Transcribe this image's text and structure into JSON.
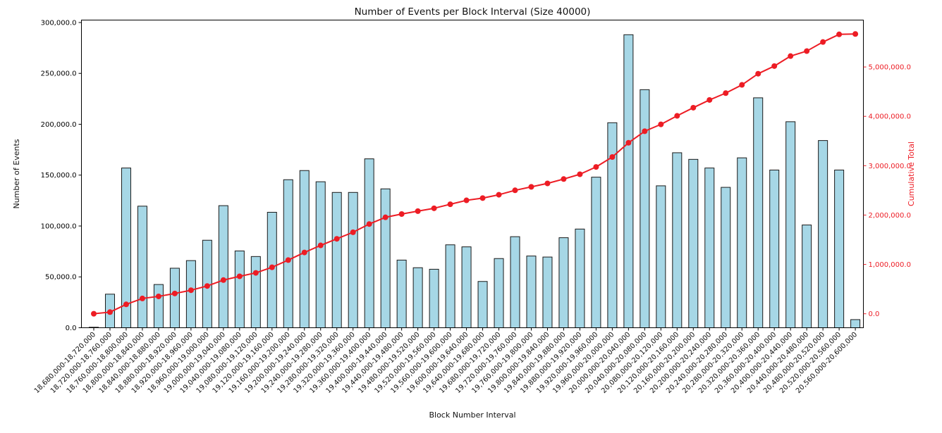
{
  "chart_data": {
    "type": "bar",
    "combo": "bar+line",
    "title": "Number of Events per Block Interval (Size 40000)",
    "xlabel": "Block Number Interval",
    "ylabel_left": "Number of Events",
    "ylabel_right": "Cumulative Total",
    "grid": false,
    "legend": false,
    "colors": {
      "bar_fill": "#A6D7E6",
      "bar_edge": "#1a1a1a",
      "line": "#ED1C24",
      "axis": "#000000",
      "background": "#FFFFFF"
    },
    "categories": [
      "18,680,000-18,720,000",
      "18,720,000-18,760,000",
      "18,760,000-18,800,000",
      "18,800,000-18,840,000",
      "18,840,000-18,880,000",
      "18,880,000-18,920,000",
      "18,920,000-18,960,000",
      "18,960,000-19,000,000",
      "19,000,000-19,040,000",
      "19,040,000-19,080,000",
      "19,080,000-19,120,000",
      "19,120,000-19,160,000",
      "19,160,000-19,200,000",
      "19,200,000-19,240,000",
      "19,240,000-19,280,000",
      "19,280,000-19,320,000",
      "19,320,000-19,360,000",
      "19,360,000-19,400,000",
      "19,400,000-19,440,000",
      "19,440,000-19,480,000",
      "19,480,000-19,520,000",
      "19,520,000-19,560,000",
      "19,560,000-19,600,000",
      "19,600,000-19,640,000",
      "19,640,000-19,680,000",
      "19,680,000-19,720,000",
      "19,720,000-19,760,000",
      "19,760,000-19,800,000",
      "19,800,000-19,840,000",
      "19,840,000-19,880,000",
      "19,880,000-19,920,000",
      "19,920,000-19,960,000",
      "19,960,000-20,000,000",
      "20,000,000-20,040,000",
      "20,040,000-20,080,000",
      "20,080,000-20,120,000",
      "20,120,000-20,160,000",
      "20,160,000-20,200,000",
      "20,200,000-20,240,000",
      "20,240,000-20,280,000",
      "20,280,000-20,320,000",
      "20,320,000-20,360,000",
      "20,360,000-20,400,000",
      "20,400,000-20,440,000",
      "20,440,000-20,480,000",
      "20,480,000-20,520,000",
      "20,520,000-20,560,000",
      "20,560,000-20,600,000"
    ],
    "series": [
      {
        "name": "Number of Events",
        "type": "bar",
        "axis": "left",
        "color": "#A6D7E6",
        "edge_color": "#1a1a1a",
        "values": [
          500,
          33000,
          157000,
          119500,
          42500,
          58500,
          66000,
          86000,
          120000,
          75500,
          70000,
          113500,
          145500,
          154500,
          143500,
          133000,
          133000,
          166000,
          136500,
          66500,
          59000,
          57500,
          81500,
          79500,
          45500,
          68000,
          89500,
          70500,
          69500,
          88500,
          97000,
          148000,
          201500,
          288000,
          234000,
          139500,
          172000,
          165500,
          157000,
          138000,
          167000,
          226000,
          155000,
          202500,
          101000,
          184000,
          155000,
          8000
        ]
      },
      {
        "name": "Cumulative Total",
        "type": "line",
        "axis": "right",
        "color": "#ED1C24",
        "marker": "circle",
        "values": [
          500,
          33500,
          190500,
          310000,
          352500,
          411000,
          477000,
          563000,
          683000,
          758500,
          828500,
          942000,
          1087500,
          1242000,
          1385500,
          1518500,
          1651500,
          1817500,
          1954000,
          2020500,
          2079500,
          2137000,
          2218500,
          2298000,
          2343500,
          2411500,
          2501000,
          2571500,
          2641000,
          2729500,
          2826500,
          2974500,
          3176000,
          3464000,
          3698000,
          3837500,
          4009500,
          4175000,
          4332000,
          4470000,
          4637000,
          4863000,
          5018000,
          5220500,
          5321500,
          5505500,
          5660500,
          5668500
        ]
      }
    ],
    "axes": {
      "left": {
        "range": [
          0,
          302400
        ],
        "tick_values": [
          0,
          50000,
          100000,
          150000,
          200000,
          250000,
          300000
        ],
        "tick_labels": [
          "0.0",
          "50,000.0",
          "100,000.0",
          "150,000.0",
          "200,000.0",
          "250,000.0",
          "300,000.0"
        ],
        "color": "#000000"
      },
      "right": {
        "range": [
          -283000,
          5950000
        ],
        "tick_values": [
          0,
          1000000,
          2000000,
          3000000,
          4000000,
          5000000
        ],
        "tick_labels": [
          "0.0",
          "1,000,000.0",
          "2,000,000.0",
          "3,000,000.0",
          "4,000,000.0",
          "5,000,000.0"
        ],
        "color": "#ED1C24"
      },
      "x": {
        "tick_rotation_deg": 45,
        "tick_label_color": "#111111"
      }
    }
  }
}
